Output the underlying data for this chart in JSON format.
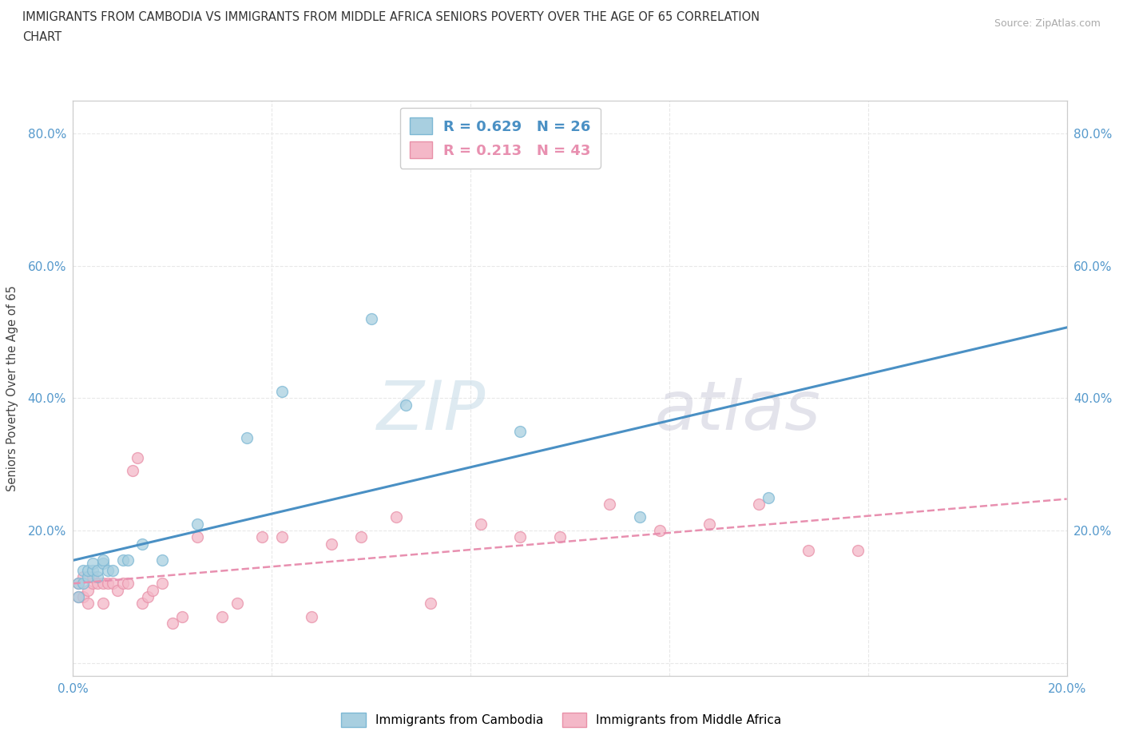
{
  "title_line1": "IMMIGRANTS FROM CAMBODIA VS IMMIGRANTS FROM MIDDLE AFRICA SENIORS POVERTY OVER THE AGE OF 65 CORRELATION",
  "title_line2": "CHART",
  "source": "Source: ZipAtlas.com",
  "ylabel": "Seniors Poverty Over the Age of 65",
  "xlim": [
    0.0,
    0.2
  ],
  "ylim": [
    -0.02,
    0.85
  ],
  "x_ticks": [
    0.0,
    0.04,
    0.08,
    0.12,
    0.16,
    0.2
  ],
  "y_ticks": [
    0.0,
    0.2,
    0.4,
    0.6,
    0.8
  ],
  "x_tick_labels": [
    "0.0%",
    "",
    "",
    "",
    "",
    "20.0%"
  ],
  "y_tick_labels": [
    "",
    "20.0%",
    "40.0%",
    "60.0%",
    "80.0%"
  ],
  "cambodia_color": "#a8cfe0",
  "cambodia_edge_color": "#7db8d4",
  "middle_africa_color": "#f4b8c8",
  "middle_africa_edge_color": "#e890a8",
  "cambodia_line_color": "#4a90c4",
  "middle_africa_line_color": "#e890b0",
  "tick_label_color": "#5599cc",
  "legend_R_cambodia": "0.629",
  "legend_N_cambodia": "26",
  "legend_R_middle_africa": "0.213",
  "legend_N_middle_africa": "43",
  "watermark_zip": "ZIP",
  "watermark_atlas": "atlas",
  "background_color": "#ffffff",
  "grid_color": "#e8e8e8",
  "cambodia_x": [
    0.001,
    0.001,
    0.002,
    0.002,
    0.003,
    0.003,
    0.004,
    0.004,
    0.005,
    0.005,
    0.006,
    0.006,
    0.007,
    0.008,
    0.01,
    0.011,
    0.014,
    0.018,
    0.025,
    0.035,
    0.042,
    0.06,
    0.067,
    0.09,
    0.114,
    0.14
  ],
  "cambodia_y": [
    0.1,
    0.12,
    0.12,
    0.14,
    0.13,
    0.14,
    0.14,
    0.15,
    0.13,
    0.14,
    0.15,
    0.155,
    0.14,
    0.14,
    0.155,
    0.155,
    0.18,
    0.155,
    0.21,
    0.34,
    0.41,
    0.52,
    0.39,
    0.35,
    0.22,
    0.25
  ],
  "middle_africa_x": [
    0.001,
    0.001,
    0.002,
    0.002,
    0.003,
    0.003,
    0.004,
    0.004,
    0.005,
    0.006,
    0.006,
    0.007,
    0.008,
    0.009,
    0.01,
    0.011,
    0.012,
    0.013,
    0.014,
    0.015,
    0.016,
    0.018,
    0.02,
    0.022,
    0.025,
    0.03,
    0.033,
    0.038,
    0.042,
    0.048,
    0.052,
    0.058,
    0.065,
    0.072,
    0.082,
    0.09,
    0.098,
    0.108,
    0.118,
    0.128,
    0.138,
    0.148,
    0.158
  ],
  "middle_africa_y": [
    0.12,
    0.1,
    0.13,
    0.1,
    0.11,
    0.09,
    0.12,
    0.13,
    0.12,
    0.12,
    0.09,
    0.12,
    0.12,
    0.11,
    0.12,
    0.12,
    0.29,
    0.31,
    0.09,
    0.1,
    0.11,
    0.12,
    0.06,
    0.07,
    0.19,
    0.07,
    0.09,
    0.19,
    0.19,
    0.07,
    0.18,
    0.19,
    0.22,
    0.09,
    0.21,
    0.19,
    0.19,
    0.24,
    0.2,
    0.21,
    0.24,
    0.17,
    0.17
  ]
}
